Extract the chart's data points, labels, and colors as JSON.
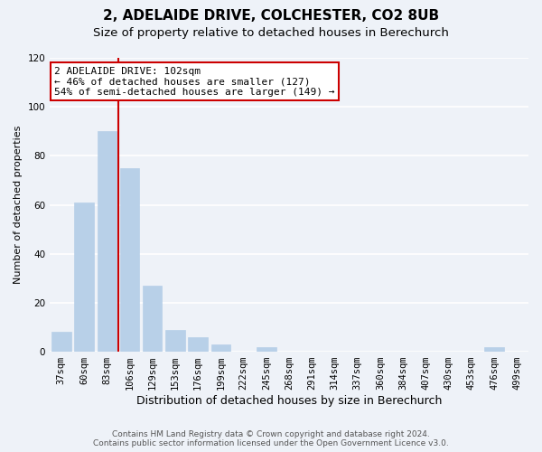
{
  "title": "2, ADELAIDE DRIVE, COLCHESTER, CO2 8UB",
  "subtitle": "Size of property relative to detached houses in Berechurch",
  "xlabel": "Distribution of detached houses by size in Berechurch",
  "ylabel": "Number of detached properties",
  "bar_labels": [
    "37sqm",
    "60sqm",
    "83sqm",
    "106sqm",
    "129sqm",
    "153sqm",
    "176sqm",
    "199sqm",
    "222sqm",
    "245sqm",
    "268sqm",
    "291sqm",
    "314sqm",
    "337sqm",
    "360sqm",
    "384sqm",
    "407sqm",
    "430sqm",
    "453sqm",
    "476sqm",
    "499sqm"
  ],
  "bar_values": [
    8,
    61,
    90,
    75,
    27,
    9,
    6,
    3,
    0,
    2,
    0,
    0,
    0,
    0,
    0,
    0,
    0,
    0,
    0,
    2,
    0
  ],
  "bar_color": "#b8d0e8",
  "bar_edge_color": "#b8d0e8",
  "vline_x": 2.5,
  "vline_color": "#cc0000",
  "ylim": [
    0,
    120
  ],
  "yticks": [
    0,
    20,
    40,
    60,
    80,
    100,
    120
  ],
  "annotation_title": "2 ADELAIDE DRIVE: 102sqm",
  "annotation_line1": "← 46% of detached houses are smaller (127)",
  "annotation_line2": "54% of semi-detached houses are larger (149) →",
  "annotation_box_color": "#ffffff",
  "annotation_box_edge": "#cc0000",
  "footer_line1": "Contains HM Land Registry data © Crown copyright and database right 2024.",
  "footer_line2": "Contains public sector information licensed under the Open Government Licence v3.0.",
  "background_color": "#eef2f8",
  "grid_color": "#ffffff",
  "title_fontsize": 11,
  "subtitle_fontsize": 9.5,
  "xlabel_fontsize": 9,
  "ylabel_fontsize": 8,
  "tick_fontsize": 7.5,
  "annotation_fontsize": 8,
  "footer_fontsize": 6.5
}
